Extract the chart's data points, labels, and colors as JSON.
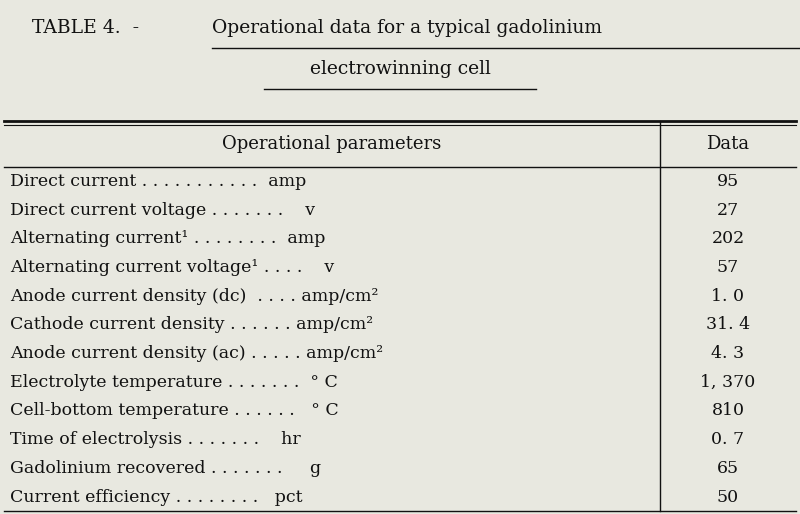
{
  "title_line1": "TABLE 4.  - Operational data for a typical gadolinium",
  "title_line2": "electrowinning cell",
  "header_col1": "Operational parameters",
  "header_col2": "Data",
  "rows": [
    {
      "param": "Direct current . . . . . . . . . . .  amp",
      "value": "95"
    },
    {
      "param": "Direct current voltage . . . . . . .    v",
      "value": "27"
    },
    {
      "param": "Alternating current¹ . . . . . . . .  amp",
      "value": "202"
    },
    {
      "param": "Alternating current voltage¹ . . . .    v",
      "value": "57"
    },
    {
      "param": "Anode current density (dc)  . . . . amp/cm²",
      "value": "1. 0"
    },
    {
      "param": "Cathode current density . . . . . . amp/cm²",
      "value": "31. 4"
    },
    {
      "param": "Anode current density (ac) . . . . . amp/cm²",
      "value": "4. 3"
    },
    {
      "param": "Electrolyte temperature . . . . . . .  ° C",
      "value": "1, 370"
    },
    {
      "param": "Cell-bottom temperature . . . . . .   ° C",
      "value": "810"
    },
    {
      "param": "Time of electrolysis . . . . . . .    hr",
      "value": "0. 7"
    },
    {
      "param": "Gadolinium recovered . . . . . . .     g",
      "value": "65"
    },
    {
      "param": "Current efficiency . . . . . . . .   pct",
      "value": "50"
    }
  ],
  "bg_color": "#e8e8e0",
  "table_bg": "#f0f0e8",
  "text_color": "#111111",
  "font_size": 12.5,
  "title_font_size": 13.5,
  "header_font_size": 13.0
}
